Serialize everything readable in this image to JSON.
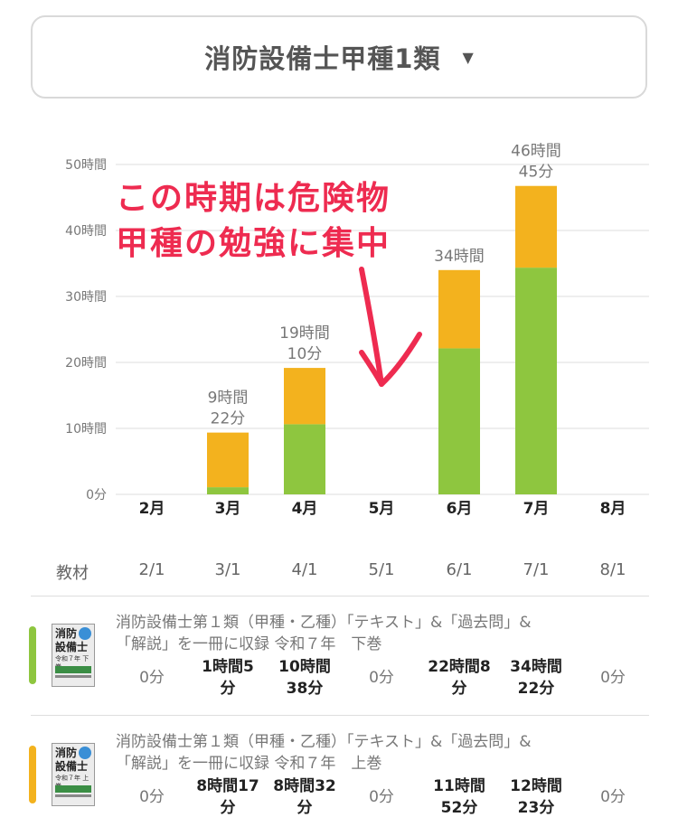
{
  "header": {
    "selected_exam": "消防設備士甲種1類"
  },
  "annotation": {
    "line1": "この時期は危険物",
    "line2": "甲種の勉強に集中"
  },
  "colors": {
    "upper_material": "#8ec63f",
    "lower_material": "#f3b21e",
    "annotation": "#ee2b50"
  },
  "chart_data": {
    "type": "bar",
    "stacked": true,
    "categories": [
      "2月",
      "3月",
      "4月",
      "5月",
      "6月",
      "7月",
      "8月"
    ],
    "y_tick_labels": [
      "0分",
      "10時間",
      "20時間",
      "30時間",
      "40時間",
      "50時間"
    ],
    "ylim": [
      0,
      50
    ],
    "y_unit": "hours",
    "grid": true,
    "series": [
      {
        "color": "#8ec63f",
        "values": [
          0,
          1.083,
          10.633,
          0,
          22.133,
          34.367,
          0
        ]
      },
      {
        "color": "#f3b21e",
        "values": [
          0,
          8.283,
          8.533,
          0,
          11.867,
          12.383,
          0
        ]
      }
    ],
    "total_labels": [
      {
        "index": 2,
        "lines": [
          "9時間",
          "22分"
        ]
      },
      {
        "index": 3,
        "lines": [
          "19時間",
          "10分"
        ]
      },
      {
        "index": 5,
        "lines": [
          "34時間"
        ]
      },
      {
        "index": 6,
        "lines": [
          "46時間",
          "45分"
        ]
      }
    ]
  },
  "table": {
    "row_header": "教材",
    "dates": [
      "2/1",
      "3/1",
      "4/1",
      "5/1",
      "6/1",
      "7/1",
      "8/1"
    ],
    "materials": [
      {
        "title_lines": [
          "消防設備士第１類（甲種・乙種）「テキスト」&「過去問」&",
          "「解説」を一冊に収録 令和７年　下巻"
        ],
        "cover_line1": "消防",
        "cover_line2": "設備士",
        "cover_line3": "令和７年 下巻",
        "cells": [
          [
            "0分"
          ],
          [
            "1時間5",
            "分"
          ],
          [
            "10時間",
            "38分"
          ],
          [
            "0分"
          ],
          [
            "22時間8",
            "分"
          ],
          [
            "34時間",
            "22分"
          ],
          [
            "0分"
          ]
        ]
      },
      {
        "title_lines": [
          "消防設備士第１類（甲種・乙種）「テキスト」&「過去問」&",
          "「解説」を一冊に収録 令和７年　上巻"
        ],
        "cover_line1": "消防",
        "cover_line2": "設備士",
        "cover_line3": "令和７年 上巻",
        "cells": [
          [
            "0分"
          ],
          [
            "8時間17",
            "分"
          ],
          [
            "8時間32",
            "分"
          ],
          [
            "0分"
          ],
          [
            "11時間",
            "52分"
          ],
          [
            "12時間",
            "23分"
          ],
          [
            "0分"
          ]
        ]
      }
    ]
  }
}
